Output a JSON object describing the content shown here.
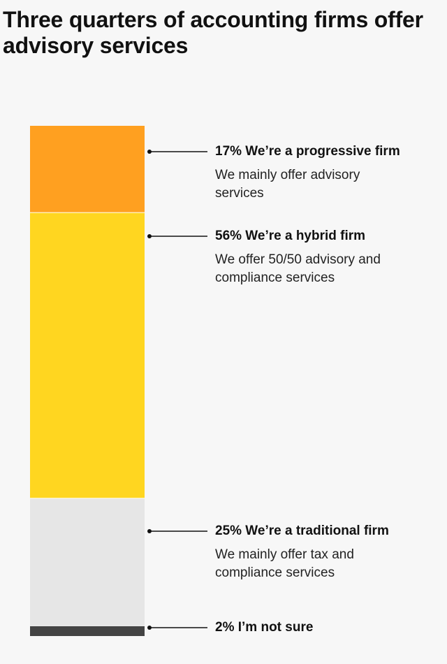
{
  "title": "Three quarters of accounting firms offer advisory services",
  "chart_data": {
    "type": "bar",
    "stacked": true,
    "orientation": "vertical",
    "unit": "%",
    "segments": [
      {
        "value": 17,
        "label": "17% We’re a progressive firm",
        "description": "We mainly offer advisory services",
        "color": "#ffa020"
      },
      {
        "value": 56,
        "label": "56% We’re a hybrid firm",
        "description": "We offer 50/50 advisory and compliance services",
        "color": "#ffd620"
      },
      {
        "value": 25,
        "label": "25% We’re a traditional firm",
        "description": "We mainly offer tax and compliance services",
        "color": "#e6e6e6"
      },
      {
        "value": 2,
        "label": "2% I’m not sure",
        "description": "",
        "color": "#444444"
      }
    ]
  }
}
